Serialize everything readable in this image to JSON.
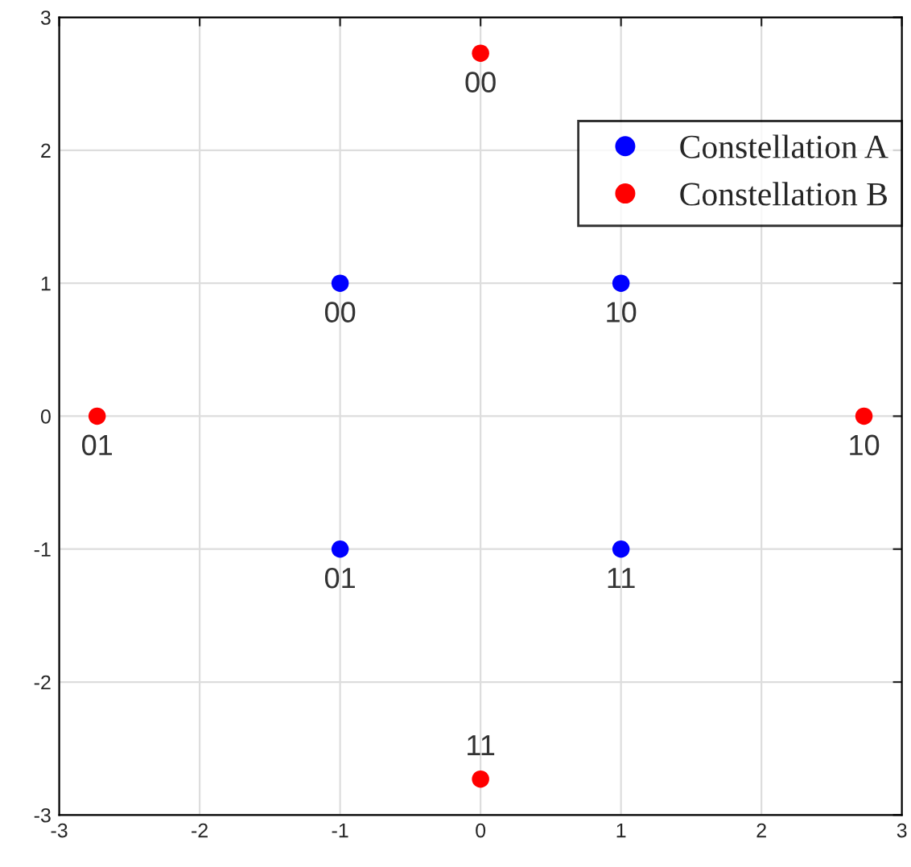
{
  "chart_data": {
    "type": "scatter",
    "series": [
      {
        "name": "Constellation A",
        "color": "#0000ff",
        "x": [
          -1,
          1,
          -1,
          1
        ],
        "values": [
          1,
          1,
          -1,
          -1
        ]
      },
      {
        "name": "Constellation B",
        "color": "#ff0000",
        "x": [
          0,
          -2.73,
          2.73,
          0
        ],
        "values": [
          2.73,
          0,
          0,
          -2.73
        ]
      }
    ],
    "annotations": [
      {
        "text": "00",
        "x": -1,
        "y": 1
      },
      {
        "text": "10",
        "x": 1,
        "y": 1
      },
      {
        "text": "01",
        "x": -1,
        "y": -1
      },
      {
        "text": "11",
        "x": 1,
        "y": -1
      },
      {
        "text": "00",
        "x": 0,
        "y": 2.73
      },
      {
        "text": "01",
        "x": -2.73,
        "y": 0
      },
      {
        "text": "10",
        "x": 2.73,
        "y": 0
      },
      {
        "text": "11",
        "x": 0,
        "y": -2.73
      }
    ],
    "xlim": [
      -3,
      3
    ],
    "ylim": [
      -3,
      3
    ],
    "xticks": [
      -3,
      -2,
      -1,
      0,
      1,
      2,
      3
    ],
    "yticks": [
      -3,
      -2,
      -1,
      0,
      1,
      2,
      3
    ],
    "grid": true,
    "legend": "top right",
    "marker": "circle"
  }
}
